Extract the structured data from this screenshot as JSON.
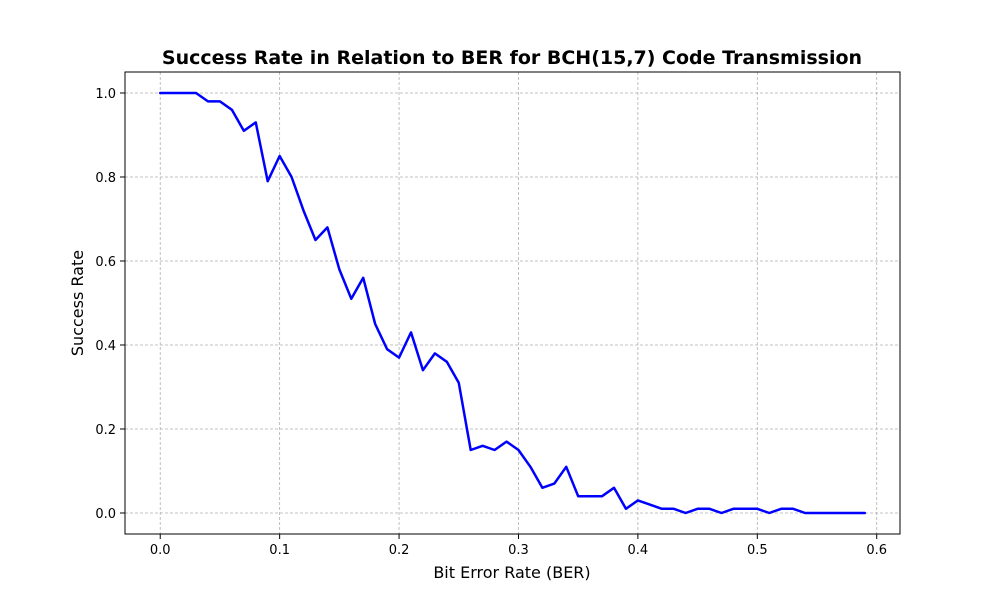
{
  "chart_data": {
    "type": "line",
    "title": "Success Rate in Relation to BER for BCH(15,7) Code Transmission",
    "xlabel": "Bit Error Rate (BER)",
    "ylabel": "Success Rate",
    "xlim": [
      -0.0295,
      0.6195
    ],
    "ylim": [
      -0.05,
      1.05
    ],
    "grid": true,
    "x_ticks": [
      "0.0",
      "0.1",
      "0.2",
      "0.3",
      "0.4",
      "0.5",
      "0.6"
    ],
    "x_tick_values": [
      0.0,
      0.1,
      0.2,
      0.3,
      0.4,
      0.5,
      0.6
    ],
    "y_ticks": [
      "0.0",
      "0.2",
      "0.4",
      "0.6",
      "0.8",
      "1.0"
    ],
    "y_tick_values": [
      0.0,
      0.2,
      0.4,
      0.6,
      0.8,
      1.0
    ],
    "series": [
      {
        "color": "#0000ff",
        "x": [
          0.0,
          0.01,
          0.02,
          0.03,
          0.04,
          0.05,
          0.06,
          0.07,
          0.08,
          0.09,
          0.1,
          0.11,
          0.12,
          0.13,
          0.14,
          0.15,
          0.16,
          0.17,
          0.18,
          0.19,
          0.2,
          0.21,
          0.22,
          0.23,
          0.24,
          0.25,
          0.26,
          0.27,
          0.28,
          0.29,
          0.3,
          0.31,
          0.32,
          0.33,
          0.34,
          0.35,
          0.36,
          0.37,
          0.38,
          0.39,
          0.4,
          0.41,
          0.42,
          0.43,
          0.44,
          0.45,
          0.46,
          0.47,
          0.48,
          0.49,
          0.5,
          0.51,
          0.52,
          0.53,
          0.54,
          0.55,
          0.56,
          0.57,
          0.58,
          0.59
        ],
        "values": [
          1.0,
          1.0,
          1.0,
          1.0,
          0.98,
          0.98,
          0.96,
          0.91,
          0.93,
          0.79,
          0.85,
          0.8,
          0.72,
          0.65,
          0.68,
          0.58,
          0.51,
          0.56,
          0.45,
          0.39,
          0.37,
          0.43,
          0.34,
          0.38,
          0.36,
          0.31,
          0.15,
          0.16,
          0.15,
          0.17,
          0.15,
          0.11,
          0.06,
          0.07,
          0.11,
          0.04,
          0.04,
          0.04,
          0.06,
          0.01,
          0.03,
          0.02,
          0.01,
          0.01,
          0.0,
          0.01,
          0.01,
          0.0,
          0.01,
          0.01,
          0.01,
          0.0,
          0.01,
          0.01,
          0.0,
          0.0,
          0.0,
          0.0,
          0.0,
          0.0
        ]
      }
    ]
  }
}
